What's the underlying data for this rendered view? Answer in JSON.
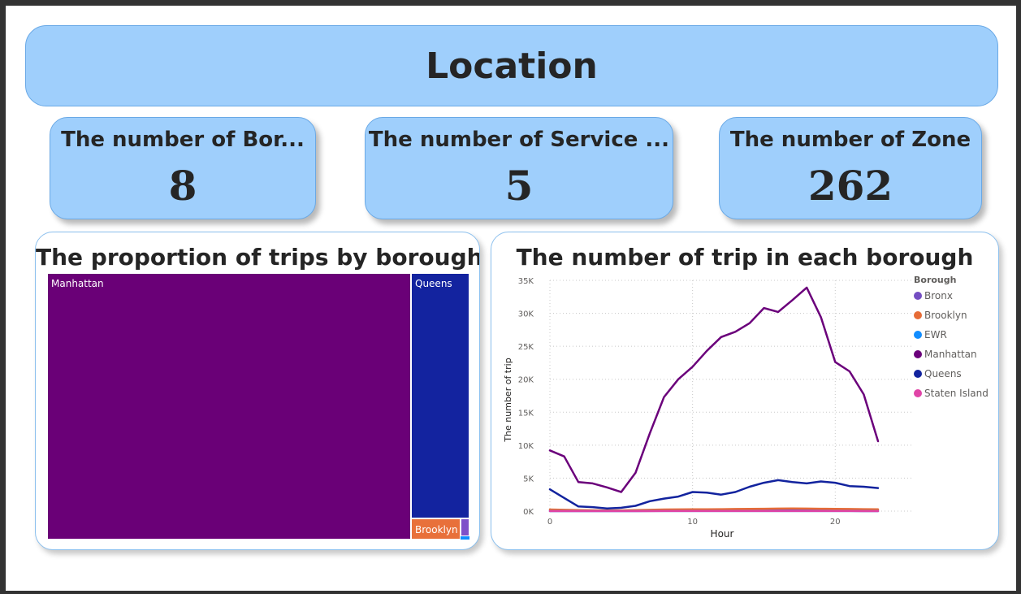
{
  "header": {
    "title": "Location"
  },
  "cards": [
    {
      "title": "The number of Bor...",
      "value": "8"
    },
    {
      "title": "The number of Service ...",
      "value": "5"
    },
    {
      "title": "The number of Zone",
      "value": "262"
    }
  ],
  "treemap_panel": {
    "title": "The proportion of trips by borough",
    "tiles": [
      {
        "label": "Manhattan",
        "color": "#6a0077"
      },
      {
        "label": "Queens",
        "color": "#13239f"
      },
      {
        "label": "Brooklyn",
        "color": "#e8703a"
      },
      {
        "label": "",
        "color": "#7e4fc9"
      },
      {
        "label": "",
        "color": "#118dff"
      }
    ]
  },
  "line_panel": {
    "title": "The number of trip in each borough",
    "legend_title": "Borough"
  },
  "chart_data": {
    "type": "line",
    "xlabel": "Hour",
    "ylabel": "The number of trip",
    "xlim": [
      0,
      23
    ],
    "ylim": [
      0,
      35000
    ],
    "x_ticks": [
      0,
      10,
      20
    ],
    "x_tick_labels": [
      "0",
      "10",
      "20"
    ],
    "y_ticks": [
      0,
      5000,
      10000,
      15000,
      20000,
      25000,
      30000,
      35000
    ],
    "y_tick_labels": [
      "0K",
      "5K",
      "10K",
      "15K",
      "20K",
      "25K",
      "30K",
      "35K"
    ],
    "grid": true,
    "legend_position": "right",
    "x": [
      0,
      1,
      2,
      3,
      4,
      5,
      6,
      7,
      8,
      9,
      10,
      11,
      12,
      13,
      14,
      15,
      16,
      17,
      18,
      19,
      20,
      21,
      22,
      23
    ],
    "series": [
      {
        "name": "Bronx",
        "color": "#744ec2",
        "values": [
          150,
          120,
          90,
          80,
          70,
          80,
          110,
          150,
          180,
          190,
          200,
          210,
          220,
          230,
          240,
          250,
          260,
          260,
          250,
          240,
          230,
          210,
          190,
          170
        ]
      },
      {
        "name": "Brooklyn",
        "color": "#e66c37",
        "values": [
          250,
          200,
          150,
          120,
          100,
          110,
          150,
          200,
          250,
          260,
          270,
          280,
          300,
          320,
          340,
          360,
          380,
          390,
          380,
          360,
          340,
          320,
          300,
          270
        ]
      },
      {
        "name": "EWR",
        "color": "#118dff",
        "values": [
          5,
          3,
          2,
          2,
          2,
          3,
          5,
          8,
          10,
          10,
          10,
          10,
          10,
          10,
          10,
          10,
          10,
          10,
          10,
          10,
          10,
          8,
          6,
          5
        ]
      },
      {
        "name": "Manhattan",
        "color": "#6b007b",
        "values": [
          9200,
          8300,
          4400,
          4200,
          3600,
          2900,
          5800,
          11800,
          17300,
          20000,
          21900,
          24300,
          26400,
          27200,
          28500,
          30800,
          30200,
          32000,
          33900,
          29400,
          22600,
          21200,
          17700,
          10600
        ]
      },
      {
        "name": "Queens",
        "color": "#12239e",
        "values": [
          3300,
          2000,
          700,
          600,
          400,
          500,
          800,
          1500,
          1900,
          2200,
          2900,
          2800,
          2500,
          2900,
          3700,
          4300,
          4700,
          4400,
          4200,
          4500,
          4300,
          3800,
          3700,
          3500
        ]
      },
      {
        "name": "Staten Island",
        "color": "#e044a7",
        "values": [
          5,
          4,
          3,
          3,
          3,
          3,
          4,
          6,
          8,
          9,
          10,
          10,
          10,
          10,
          10,
          10,
          10,
          10,
          10,
          9,
          8,
          7,
          6,
          5
        ]
      }
    ]
  }
}
